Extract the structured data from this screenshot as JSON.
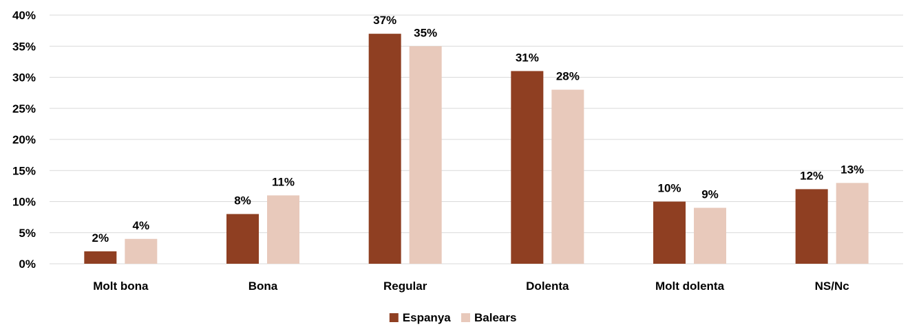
{
  "chart_data": {
    "type": "bar",
    "categories": [
      "Molt bona",
      "Bona",
      "Regular",
      "Dolenta",
      "Molt dolenta",
      "NS/Nc"
    ],
    "series": [
      {
        "name": "Espanya",
        "values": [
          2,
          8,
          37,
          31,
          10,
          12
        ],
        "color": "#8f3f22"
      },
      {
        "name": "Balears",
        "values": [
          4,
          11,
          35,
          28,
          9,
          13
        ],
        "color": "#e8c9bb"
      }
    ],
    "ylim": [
      0,
      40
    ],
    "yticks": [
      0,
      5,
      10,
      15,
      20,
      25,
      30,
      35,
      40
    ],
    "value_suffix": "%",
    "grid": true,
    "legend_position": "bottom-center"
  }
}
